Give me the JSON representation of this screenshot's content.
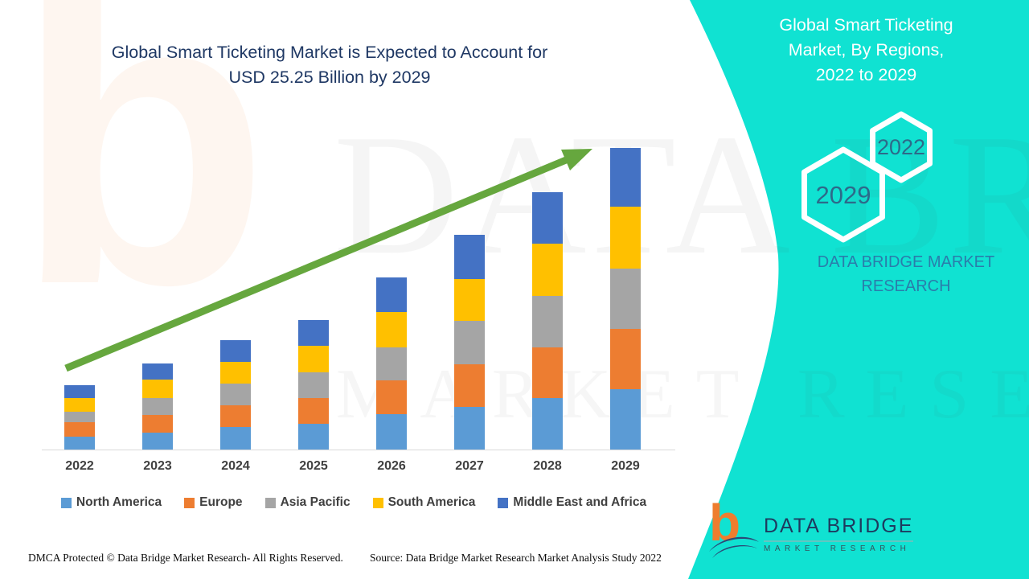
{
  "main_title": {
    "lines": [
      "Global Smart Ticketing Market is Expected to Account for",
      "USD 25.25 Billion by 2029"
    ]
  },
  "side_panel": {
    "title_lines": [
      "Global Smart Ticketing",
      "Market, By Regions,",
      "2022 to 2029"
    ],
    "hexagons": [
      {
        "label": "2022"
      },
      {
        "label": "2029"
      }
    ],
    "brand_text": "DATA BRIDGE MARKET RESEARCH",
    "background_color": "#10e2d2"
  },
  "chart_data": {
    "type": "bar",
    "stacked": true,
    "title": "Global Smart Ticketing Market is Expected to Account for USD 25.25 Billion by 2029",
    "xlabel": "",
    "ylabel": "",
    "unit": "USD Billion",
    "grid": false,
    "y_axis_shown": false,
    "legend_position": "bottom",
    "categories": [
      "2022",
      "2023",
      "2024",
      "2025",
      "2026",
      "2027",
      "2028",
      "2029"
    ],
    "series": [
      {
        "name": "North America",
        "color": "#5B9BD5",
        "values": [
          1.08,
          1.41,
          1.89,
          2.15,
          2.96,
          3.57,
          4.31,
          5.05
        ]
      },
      {
        "name": "Europe",
        "color": "#ED7D31",
        "values": [
          1.21,
          1.48,
          1.82,
          2.15,
          2.83,
          3.57,
          4.24,
          5.05
        ]
      },
      {
        "name": "Asia Pacific",
        "color": "#A5A5A5",
        "values": [
          0.88,
          1.41,
          1.82,
          2.15,
          2.76,
          3.64,
          4.31,
          5.05
        ]
      },
      {
        "name": "South America",
        "color": "#FFC000",
        "values": [
          1.14,
          1.55,
          1.82,
          2.22,
          2.96,
          3.5,
          4.38,
          5.18
        ]
      },
      {
        "name": "Middle East and Africa",
        "color": "#4472C4",
        "values": [
          1.08,
          1.35,
          1.82,
          2.15,
          2.9,
          3.7,
          4.31,
          4.92
        ]
      }
    ],
    "totals": [
      5.39,
      7.2,
      9.17,
      10.82,
      14.41,
      17.98,
      21.55,
      25.25
    ],
    "ylim": [
      0,
      25.25
    ],
    "annotations": [
      "upward green trend arrow across bar tops"
    ],
    "values_note": "Per-region values estimated from bar heights; 2029 total anchored to USD 25.25 billion stated in title"
  },
  "watermark": {
    "letter": "b",
    "line1": "DATA BRIDGE",
    "line2": "MARKET RESEARCH"
  },
  "footer": {
    "dmca": "DMCA Protected © Data Bridge Market Research- All Rights Reserved.",
    "source": "Source: Data Bridge Market Research Market Analysis Study 2022",
    "logo": {
      "name": "DATA BRIDGE",
      "tagline": "MARKET RESEARCH",
      "mark": "b"
    }
  },
  "colors": {
    "accent_green": "#66a73e",
    "panel_cyan": "#10e2d2",
    "title_navy": "#1f3864",
    "hex_year_text": "#2d6a8a",
    "brand_blue": "#2a7dab",
    "axis_text": "#404040",
    "logo_orange": "#ee7d2e",
    "logo_navy": "#1e3a5f"
  }
}
